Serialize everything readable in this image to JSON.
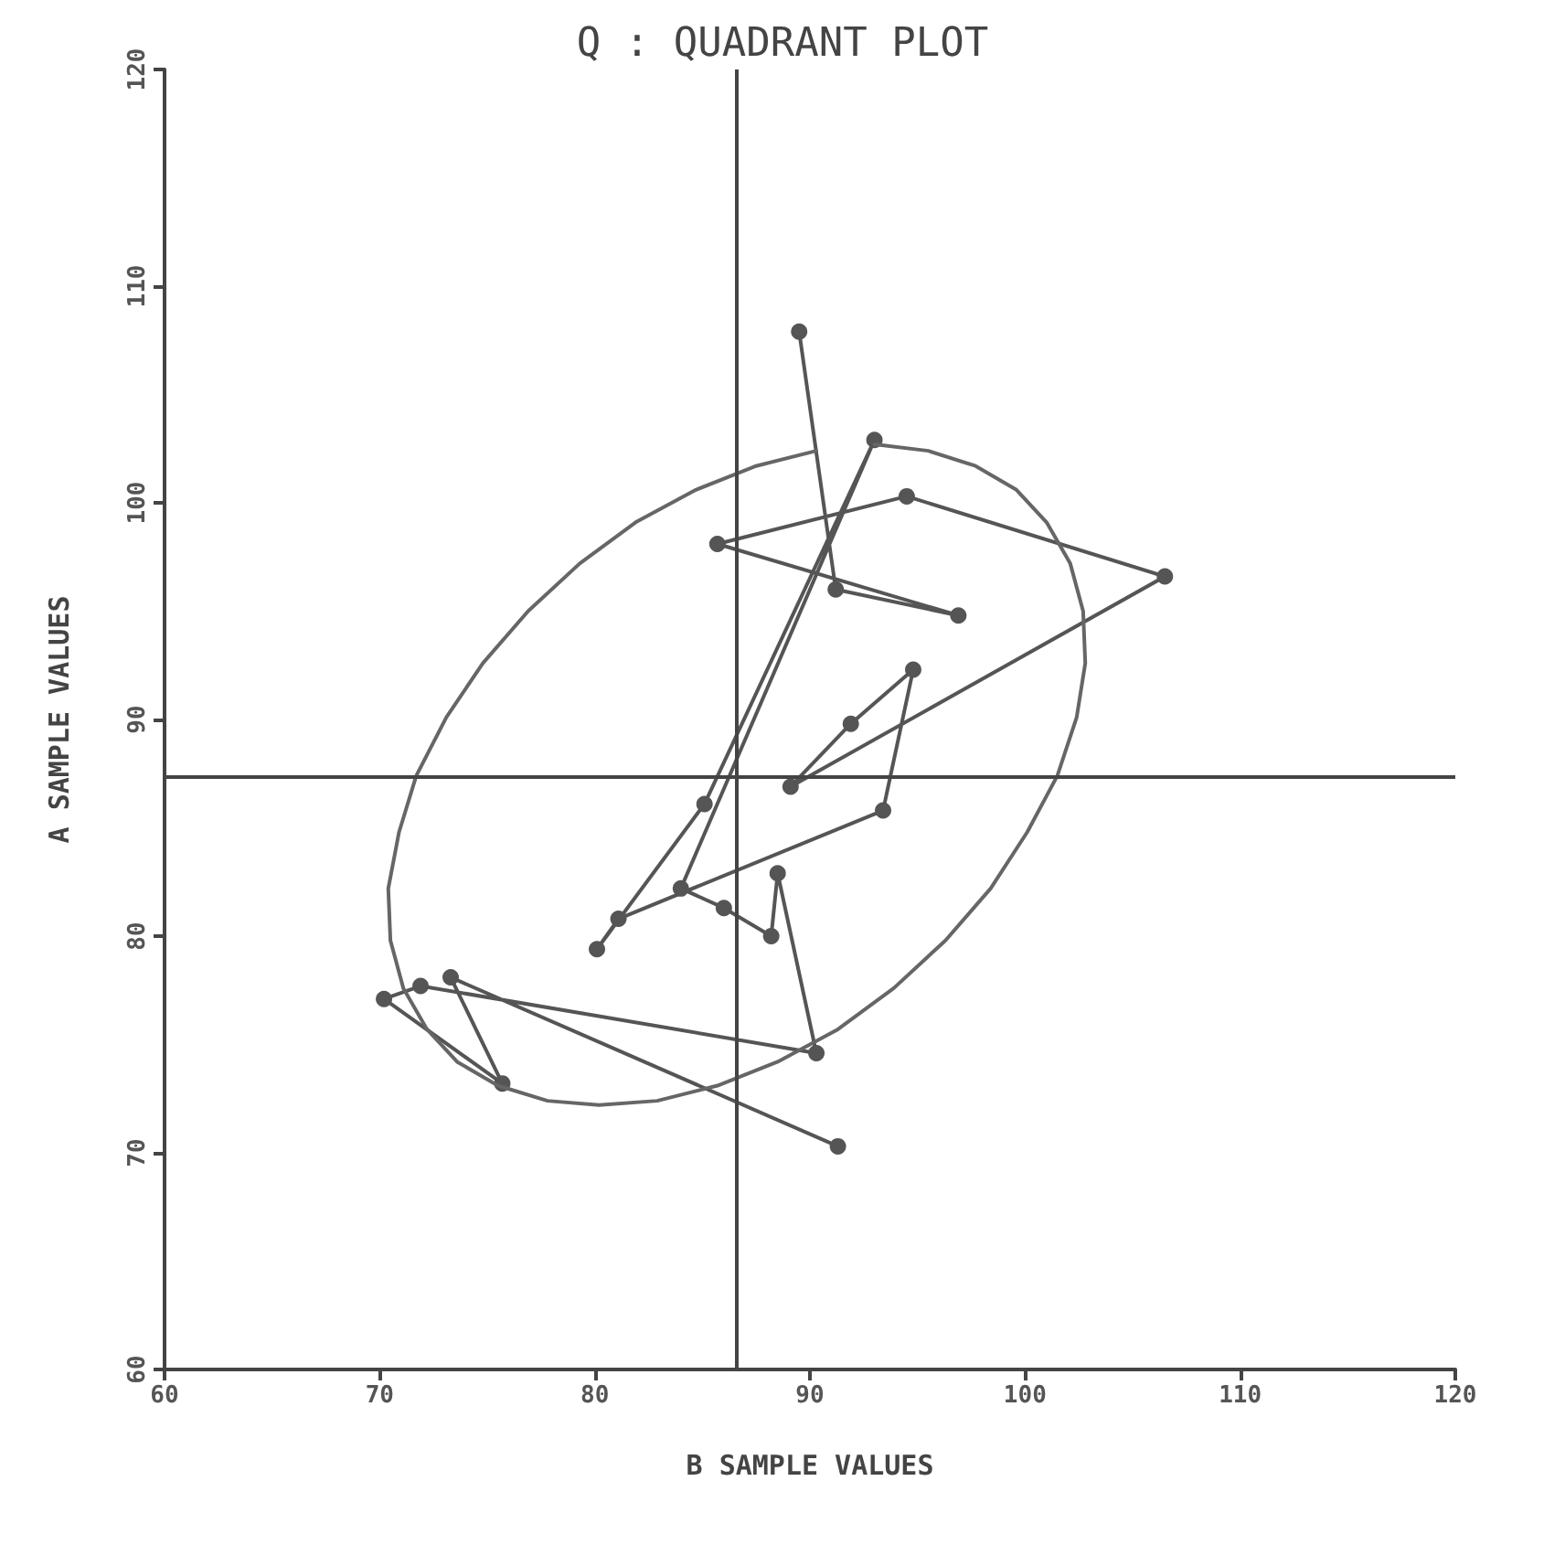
{
  "chart_data": {
    "type": "line",
    "title": "Q : QUADRANT PLOT",
    "xlabel": "B SAMPLE VALUES",
    "ylabel": "A SAMPLE VALUES",
    "xlim": [
      60,
      120
    ],
    "xticks": [
      60,
      70,
      80,
      90,
      100,
      110,
      120
    ],
    "ylim": [
      60,
      120
    ],
    "yticks": [
      60,
      70,
      80,
      90,
      100,
      110,
      120
    ],
    "grid": false,
    "ref_lines": [
      {
        "axis": "x",
        "value": 86.6,
        "label": null,
        "color": "#444444"
      },
      {
        "axis": "y",
        "value": 87.4,
        "label": null,
        "color": "#444444"
      }
    ],
    "series": [
      {
        "color": "#555555",
        "marker": "circle",
        "x": [
          89.5,
          91.2,
          96.9,
          85.7,
          94.5,
          106.5,
          89.1,
          91.9,
          94.8,
          93.4,
          81.1,
          80.1,
          85.1,
          93.0,
          84.0,
          86.0,
          88.2,
          88.5,
          90.3,
          71.9,
          70.2,
          75.7,
          73.3,
          91.3
        ],
        "values": [
          107.9,
          96.0,
          94.8,
          98.1,
          100.3,
          96.6,
          86.9,
          89.8,
          92.3,
          85.8,
          80.8,
          79.4,
          86.1,
          102.9,
          82.2,
          81.3,
          80.0,
          82.9,
          74.6,
          77.7,
          77.1,
          73.2,
          78.1,
          70.3
        ]
      },
      {
        "color": "#666666",
        "marker": "none",
        "x": [
          93.0,
          95.5,
          97.7,
          99.6,
          101.0,
          102.1,
          102.7,
          102.8,
          102.4,
          101.5,
          100.1,
          98.4,
          96.3,
          93.9,
          91.3,
          88.5,
          85.7,
          82.9,
          80.2,
          77.8,
          75.5,
          73.6,
          72.2,
          71.1,
          70.5,
          70.4,
          70.9,
          71.7,
          73.1,
          74.8,
          76.9,
          79.3,
          81.9,
          84.7,
          87.5,
          90.3
        ],
        "values": [
          102.7,
          102.4,
          101.7,
          100.6,
          99.1,
          97.2,
          95.0,
          92.6,
          90.1,
          87.4,
          84.8,
          82.2,
          79.8,
          77.6,
          75.7,
          74.2,
          73.1,
          72.4,
          72.2,
          72.4,
          73.1,
          74.2,
          75.7,
          77.6,
          79.8,
          82.2,
          84.8,
          87.4,
          90.1,
          92.6,
          95.0,
          97.2,
          99.1,
          100.6,
          101.7,
          102.4
        ]
      }
    ]
  }
}
